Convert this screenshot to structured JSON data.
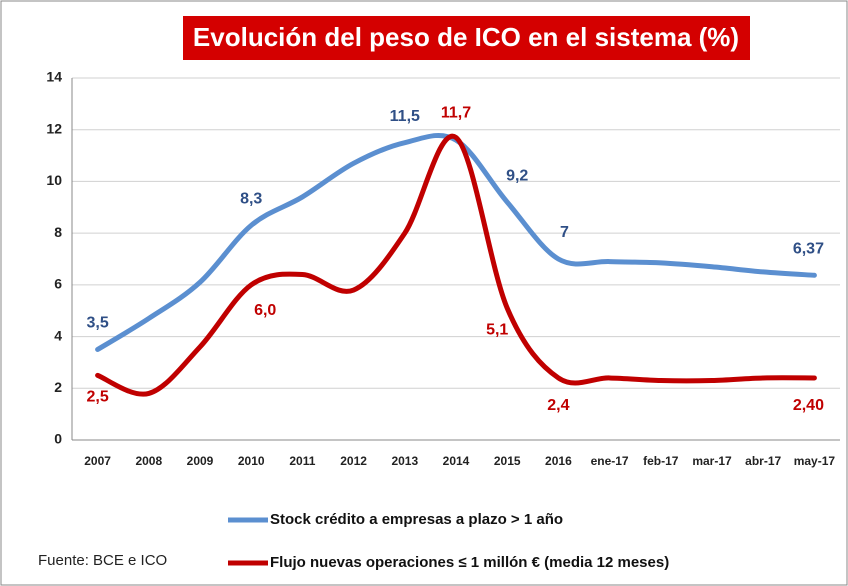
{
  "chart_data": {
    "type": "line",
    "title": "Evolución del peso de ICO en el  sistema (%)",
    "source": "Fuente: BCE e ICO",
    "categories": [
      "2007",
      "2008",
      "2009",
      "2010",
      "2011",
      "2012",
      "2013",
      "2014",
      "2015",
      "2016",
      "ene-17",
      "feb-17",
      "mar-17",
      "abr-17",
      "may-17"
    ],
    "series": [
      {
        "name": "Stock crédito a empresas a plazo > 1 año",
        "color": "#5b8fd0",
        "label_color": "#2f4f86",
        "values": [
          3.5,
          4.7,
          6.1,
          8.3,
          9.4,
          10.7,
          11.5,
          11.6,
          9.2,
          7,
          6.9,
          6.85,
          6.7,
          6.5,
          6.37
        ],
        "value_labels": [
          "3,5",
          null,
          null,
          "8,3",
          null,
          null,
          "11,5",
          null,
          "9,2",
          "7",
          null,
          null,
          null,
          null,
          "6,37"
        ]
      },
      {
        "name": "Flujo nuevas operaciones ≤ 1 millón € (media 12 meses)",
        "color": "#c00000",
        "label_color": "#c00000",
        "values": [
          2.5,
          1.8,
          3.6,
          6.0,
          6.4,
          5.8,
          8.0,
          11.7,
          5.1,
          2.4,
          2.4,
          2.3,
          2.3,
          2.4,
          2.4
        ],
        "value_labels": [
          "2,5",
          null,
          null,
          "6,0",
          null,
          null,
          null,
          "11,7",
          "5,1",
          "2,4",
          null,
          null,
          null,
          null,
          "2,40"
        ]
      }
    ],
    "ylim": [
      0,
      14
    ],
    "yticks": [
      0,
      2,
      4,
      6,
      8,
      10,
      12,
      14
    ],
    "grid": true
  }
}
